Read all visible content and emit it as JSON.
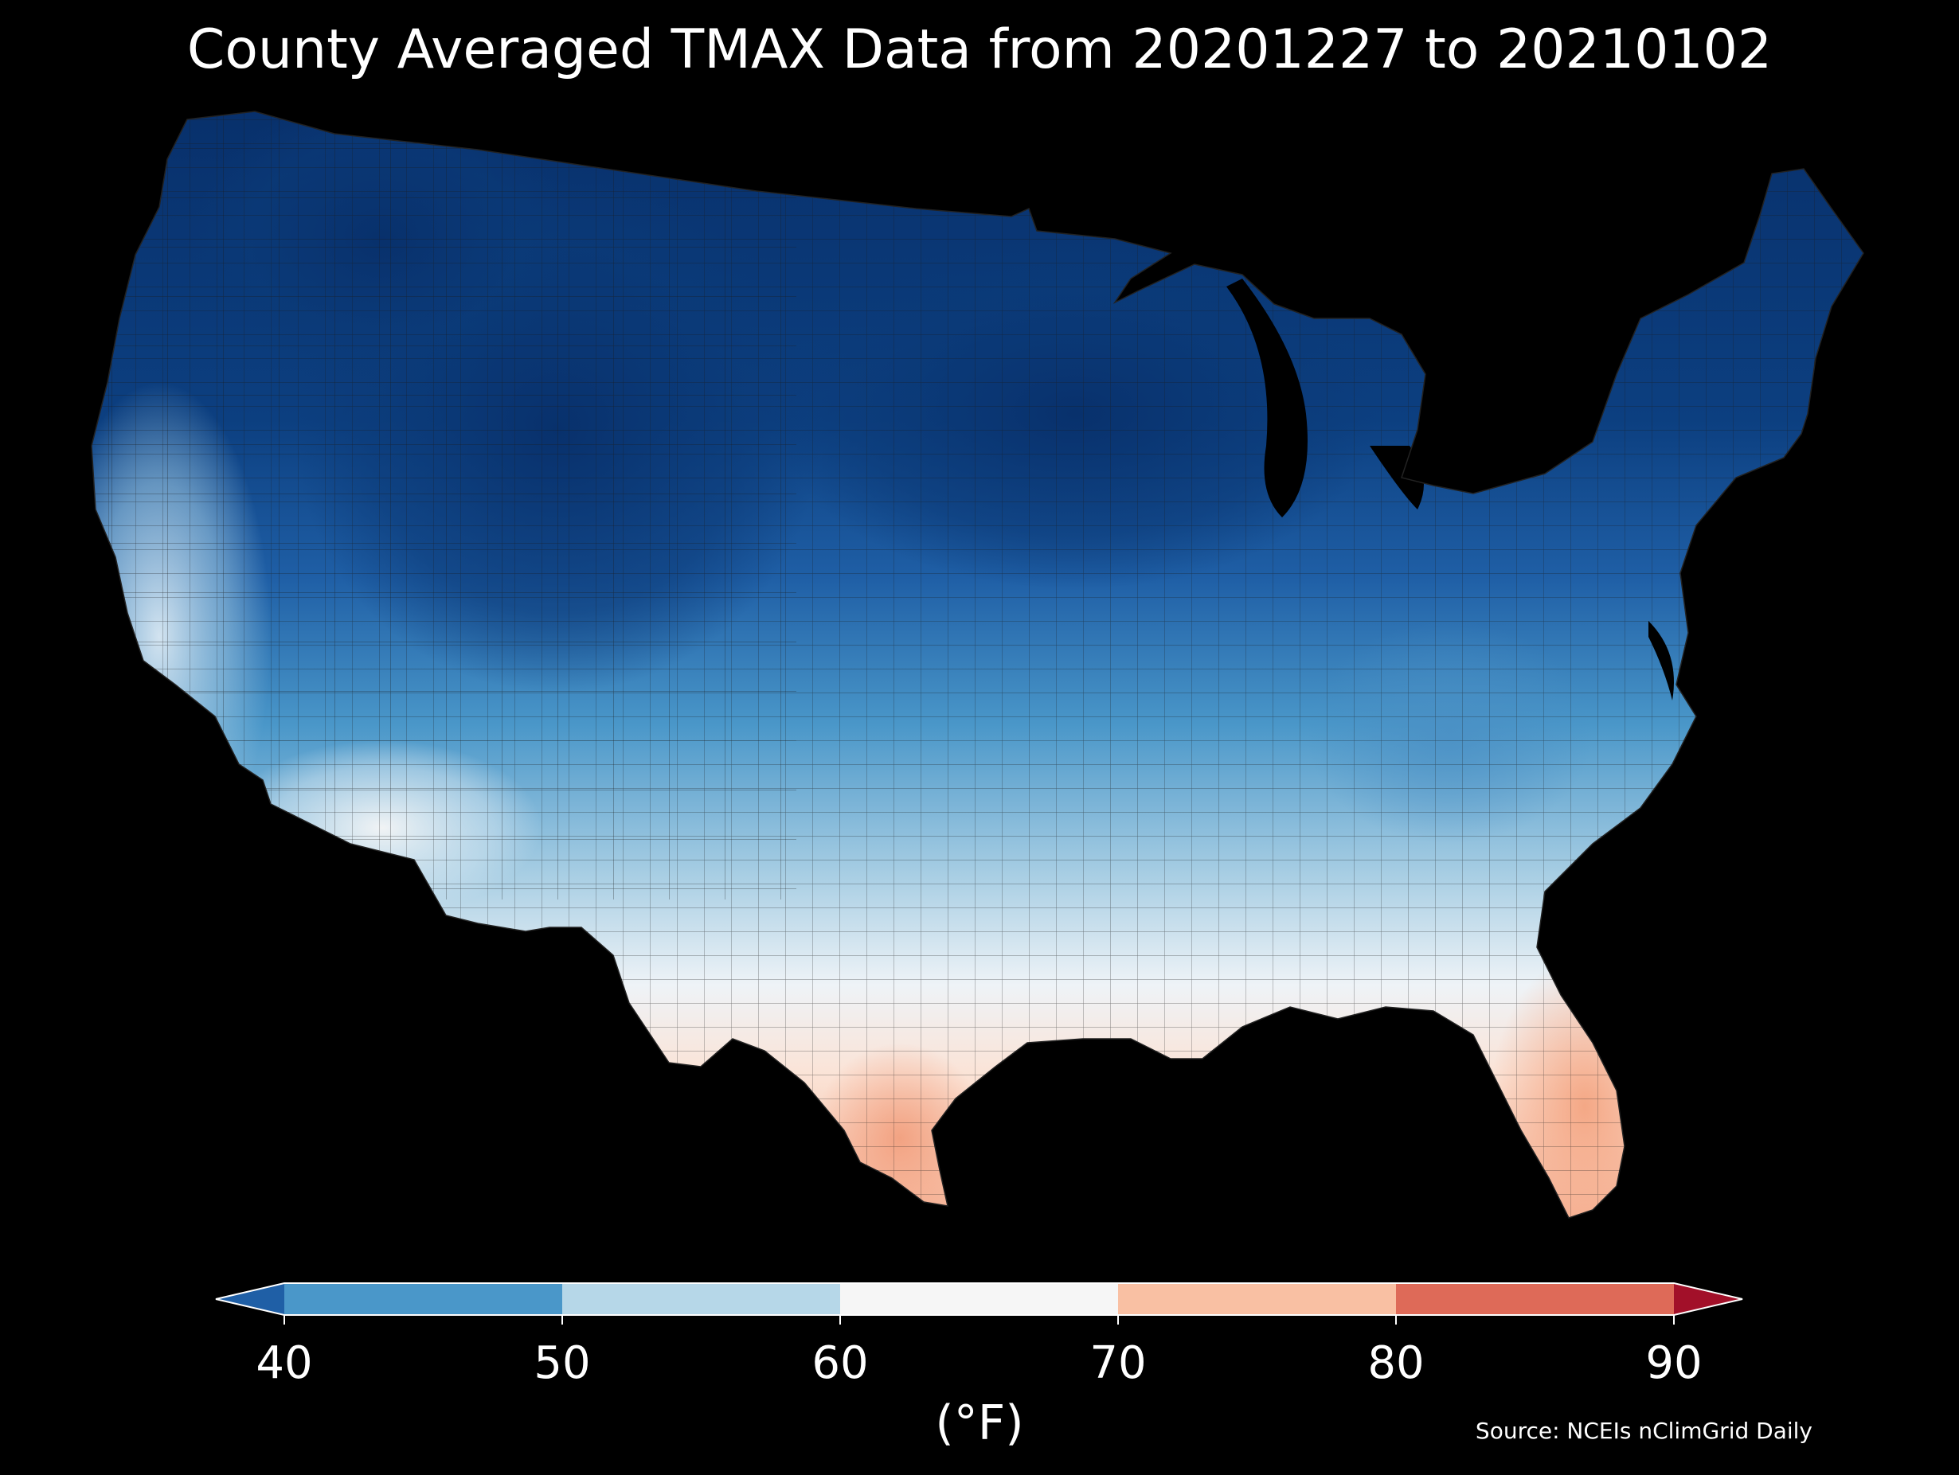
{
  "title": "County Averaged TMAX Data from 20201227 to 20210102",
  "source": "Source: NCEIs nClimGrid Daily",
  "colorbar": {
    "unit_label": "(°F)",
    "ticks": [
      "40",
      "50",
      "60",
      "70",
      "80",
      "90"
    ],
    "bins": [
      {
        "min": 40,
        "max": 50,
        "color": "#4a97c9"
      },
      {
        "min": 50,
        "max": 60,
        "color": "#b6d7e8"
      },
      {
        "min": 60,
        "max": 70,
        "color": "#f6f6f6"
      },
      {
        "min": 70,
        "max": 80,
        "color": "#f9c0a3"
      },
      {
        "min": 80,
        "max": 90,
        "color": "#de6a58"
      }
    ],
    "under_color": "#1f5fa6",
    "over_color": "#a21029",
    "extend": "both"
  },
  "map": {
    "region": "Contiguous United States",
    "background": "#000000",
    "boundary_color": "#1a1a1a",
    "palette": {
      "very_cold": "#08306b",
      "cold": "#1f5fa6",
      "cool": "#4a97c9",
      "mild": "#b6d7e8",
      "neutral": "#f6f6f6",
      "warm": "#f9c0a3"
    }
  }
}
